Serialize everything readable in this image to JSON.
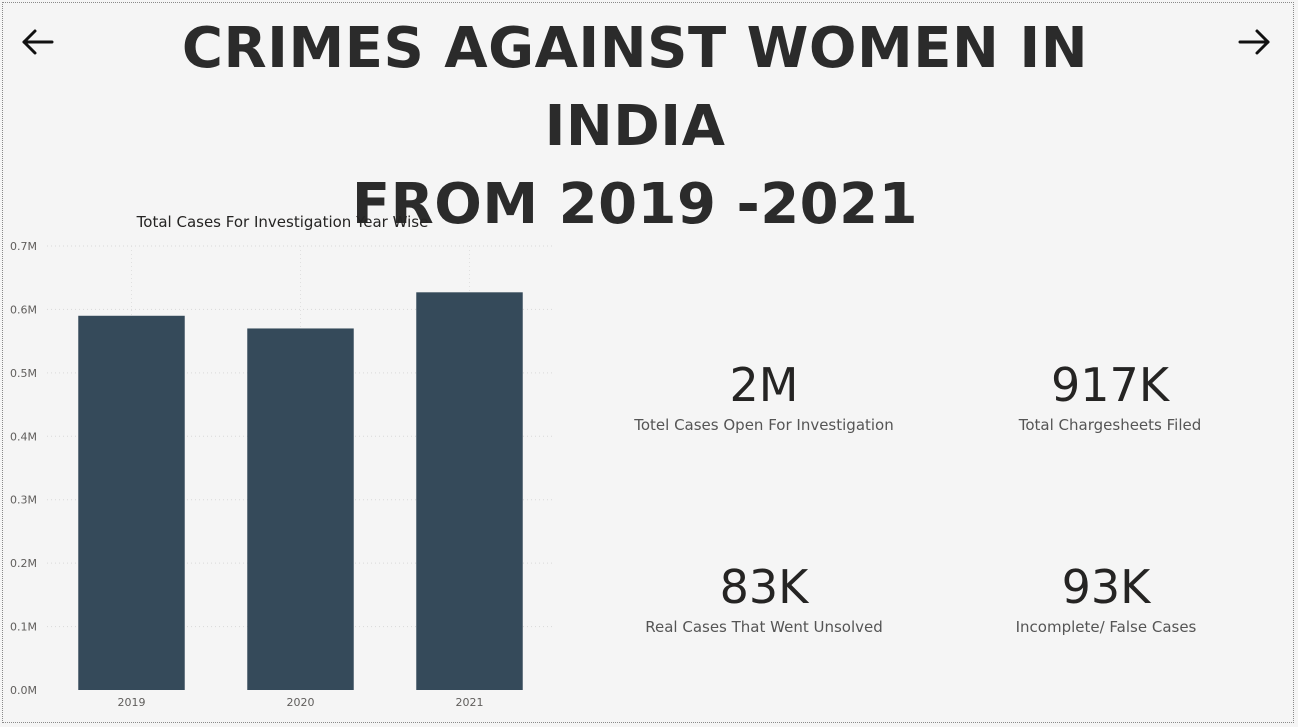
{
  "title": {
    "line1": "CRIMES AGAINST WOMEN IN INDIA",
    "line2": "FROM 2019 -2021"
  },
  "nav": {
    "back_icon": "arrow-left-icon",
    "next_icon": "arrow-right-icon"
  },
  "colors": {
    "bar": "#354a5a",
    "background": "#f5f5f5",
    "text": "#2b2b2b"
  },
  "chart_data": {
    "type": "bar",
    "title": "Total Cases For Investigation Year Wise",
    "categories": [
      "2019",
      "2020",
      "2021"
    ],
    "values": [
      0.59,
      0.57,
      0.627
    ],
    "value_unit": "M",
    "ylim": [
      0,
      0.7
    ],
    "yticks": [
      "0.0M",
      "0.1M",
      "0.2M",
      "0.3M",
      "0.4M",
      "0.5M",
      "0.6M",
      "0.7M"
    ],
    "grid": true,
    "xlabel": "",
    "ylabel": ""
  },
  "kpis": [
    {
      "value": "2M",
      "label": "Totel Cases Open For Investigation"
    },
    {
      "value": "917K",
      "label": "Total Chargesheets Filed"
    },
    {
      "value": "83K",
      "label": "Real Cases That Went Unsolved"
    },
    {
      "value": "93K",
      "label": "Incomplete/ False Cases"
    }
  ]
}
